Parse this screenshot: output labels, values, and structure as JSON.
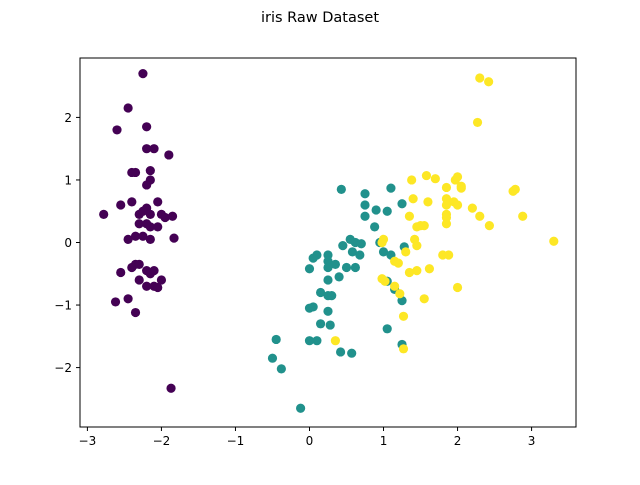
{
  "chart_data": {
    "type": "scatter",
    "title": "iris Raw Dataset",
    "xlabel": "",
    "ylabel": "",
    "xlim": [
      -3.1,
      3.6
    ],
    "ylim": [
      -2.95,
      2.95
    ],
    "x_ticks": [
      -3,
      -2,
      -1,
      0,
      1,
      2,
      3
    ],
    "y_ticks": [
      -2,
      -1,
      0,
      1,
      2
    ],
    "x_tick_labels": [
      "−3",
      "−2",
      "−1",
      "0",
      "1",
      "2",
      "3"
    ],
    "y_tick_labels": [
      "−2",
      "−1",
      "0",
      "1",
      "2"
    ],
    "grid": false,
    "legend": false,
    "series": [
      {
        "color": "#440154",
        "points": [
          [
            -2.25,
            2.7
          ],
          [
            -2.45,
            2.15
          ],
          [
            -2.6,
            1.8
          ],
          [
            -2.2,
            1.85
          ],
          [
            -2.2,
            1.5
          ],
          [
            -2.1,
            1.5
          ],
          [
            -1.9,
            1.4
          ],
          [
            -2.15,
            1.15
          ],
          [
            -2.35,
            1.12
          ],
          [
            -2.4,
            1.12
          ],
          [
            -2.15,
            1.0
          ],
          [
            -2.2,
            0.92
          ],
          [
            -2.78,
            0.45
          ],
          [
            -2.55,
            0.6
          ],
          [
            -2.4,
            0.65
          ],
          [
            -2.2,
            0.55
          ],
          [
            -2.05,
            0.65
          ],
          [
            -2.3,
            0.45
          ],
          [
            -2.25,
            0.5
          ],
          [
            -2.15,
            0.45
          ],
          [
            -2.0,
            0.45
          ],
          [
            -1.95,
            0.4
          ],
          [
            -1.85,
            0.42
          ],
          [
            -2.3,
            0.3
          ],
          [
            -2.2,
            0.3
          ],
          [
            -2.15,
            0.25
          ],
          [
            -2.05,
            0.25
          ],
          [
            -2.45,
            0.05
          ],
          [
            -2.35,
            0.1
          ],
          [
            -2.25,
            0.1
          ],
          [
            -2.15,
            0.05
          ],
          [
            -1.83,
            0.07
          ],
          [
            -2.35,
            -0.35
          ],
          [
            -2.4,
            -0.4
          ],
          [
            -2.3,
            -0.35
          ],
          [
            -2.2,
            -0.45
          ],
          [
            -2.15,
            -0.5
          ],
          [
            -2.1,
            -0.45
          ],
          [
            -2.55,
            -0.48
          ],
          [
            -2.0,
            -0.6
          ],
          [
            -2.3,
            -0.6
          ],
          [
            -2.2,
            -0.7
          ],
          [
            -2.1,
            -0.7
          ],
          [
            -2.05,
            -0.72
          ],
          [
            -2.45,
            -0.9
          ],
          [
            -2.62,
            -0.95
          ],
          [
            -2.35,
            -1.12
          ],
          [
            -1.87,
            -2.33
          ]
        ]
      },
      {
        "color": "#21918c",
        "points": [
          [
            0.43,
            0.85
          ],
          [
            1.1,
            0.87
          ],
          [
            0.75,
            0.78
          ],
          [
            0.75,
            0.6
          ],
          [
            0.9,
            0.52
          ],
          [
            1.05,
            0.5
          ],
          [
            1.25,
            0.62
          ],
          [
            0.75,
            0.42
          ],
          [
            0.88,
            0.25
          ],
          [
            0.55,
            0.05
          ],
          [
            0.62,
            0.0
          ],
          [
            0.7,
            -0.02
          ],
          [
            0.45,
            -0.05
          ],
          [
            0.25,
            -0.2
          ],
          [
            0.1,
            -0.2
          ],
          [
            0.05,
            -0.25
          ],
          [
            0.25,
            -0.3
          ],
          [
            0.35,
            -0.35
          ],
          [
            0.0,
            -0.42
          ],
          [
            0.25,
            -0.4
          ],
          [
            0.5,
            -0.4
          ],
          [
            0.62,
            -0.4
          ],
          [
            0.58,
            -0.15
          ],
          [
            0.68,
            -0.2
          ],
          [
            1.0,
            -0.15
          ],
          [
            1.1,
            -0.2
          ],
          [
            1.28,
            -0.07
          ],
          [
            0.95,
            0.0
          ],
          [
            0.25,
            -0.6
          ],
          [
            0.4,
            -0.55
          ],
          [
            1.05,
            -0.62
          ],
          [
            1.15,
            -0.75
          ],
          [
            0.15,
            -0.8
          ],
          [
            0.25,
            -0.85
          ],
          [
            0.3,
            -0.85
          ],
          [
            0.0,
            -1.05
          ],
          [
            0.05,
            -1.03
          ],
          [
            0.25,
            -1.1
          ],
          [
            1.25,
            -0.93
          ],
          [
            0.15,
            -1.3
          ],
          [
            0.28,
            -1.32
          ],
          [
            1.05,
            -1.38
          ],
          [
            -0.45,
            -1.55
          ],
          [
            0.1,
            -1.57
          ],
          [
            0.0,
            -1.57
          ],
          [
            0.42,
            -1.75
          ],
          [
            0.57,
            -1.77
          ],
          [
            1.25,
            -1.63
          ],
          [
            -0.5,
            -1.85
          ],
          [
            -0.38,
            -2.02
          ],
          [
            -0.12,
            -2.65
          ]
        ]
      },
      {
        "color": "#fde725",
        "points": [
          [
            2.3,
            2.63
          ],
          [
            2.42,
            2.57
          ],
          [
            2.27,
            1.92
          ],
          [
            1.58,
            1.07
          ],
          [
            1.7,
            1.02
          ],
          [
            1.38,
            1.0
          ],
          [
            1.97,
            1.0
          ],
          [
            2.0,
            1.05
          ],
          [
            1.85,
            0.88
          ],
          [
            2.05,
            0.87
          ],
          [
            2.05,
            0.9
          ],
          [
            2.75,
            0.82
          ],
          [
            2.78,
            0.85
          ],
          [
            1.4,
            0.7
          ],
          [
            1.6,
            0.65
          ],
          [
            1.85,
            0.7
          ],
          [
            1.95,
            0.65
          ],
          [
            1.85,
            0.6
          ],
          [
            2.0,
            0.6
          ],
          [
            2.2,
            0.55
          ],
          [
            1.35,
            0.42
          ],
          [
            1.85,
            0.45
          ],
          [
            1.85,
            0.4
          ],
          [
            2.3,
            0.42
          ],
          [
            2.88,
            0.42
          ],
          [
            1.5,
            0.27
          ],
          [
            1.45,
            0.25
          ],
          [
            1.55,
            0.27
          ],
          [
            1.85,
            0.3
          ],
          [
            2.43,
            0.27
          ],
          [
            1.0,
            0.05
          ],
          [
            0.98,
            0.0
          ],
          [
            1.42,
            0.05
          ],
          [
            3.3,
            0.02
          ],
          [
            1.45,
            -0.05
          ],
          [
            1.3,
            -0.15
          ],
          [
            1.8,
            -0.2
          ],
          [
            1.88,
            -0.2
          ],
          [
            1.15,
            -0.3
          ],
          [
            1.2,
            -0.33
          ],
          [
            1.45,
            -0.45
          ],
          [
            1.35,
            -0.48
          ],
          [
            1.62,
            -0.42
          ],
          [
            0.98,
            -0.58
          ],
          [
            1.02,
            -0.62
          ],
          [
            1.15,
            -0.7
          ],
          [
            2.0,
            -0.72
          ],
          [
            1.22,
            -0.82
          ],
          [
            1.55,
            -0.9
          ],
          [
            1.27,
            -1.18
          ],
          [
            0.35,
            -1.57
          ],
          [
            1.27,
            -1.7
          ]
        ]
      }
    ]
  }
}
